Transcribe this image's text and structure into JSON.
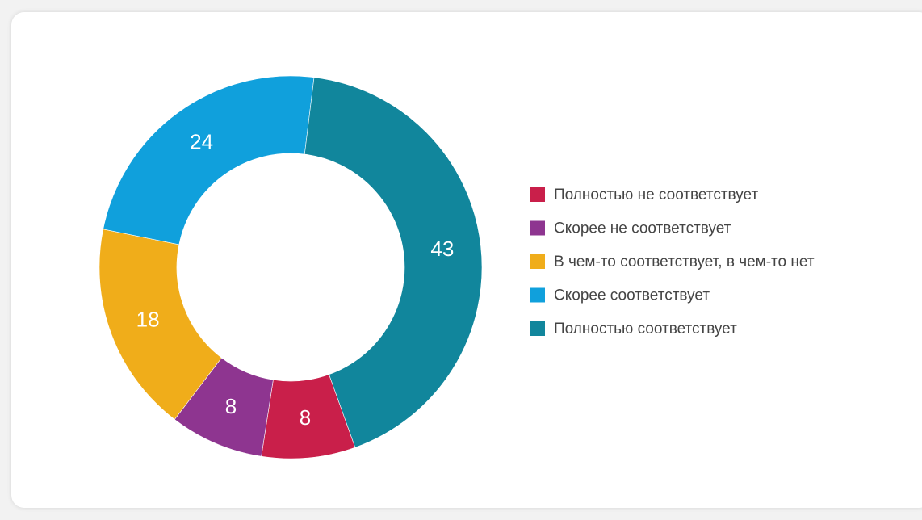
{
  "chart_data": {
    "type": "donut",
    "categories": [
      "Полностью не соответствует",
      "Скорее не соответствует",
      "В чем-то соответствует, в чем-то нет",
      "Скорее соответствует",
      "Полностью соответствует"
    ],
    "values": [
      8,
      8,
      18,
      24,
      43
    ],
    "colors": [
      "#c91f4a",
      "#8e3590",
      "#f0ad1a",
      "#10a0dc",
      "#11869c"
    ],
    "legend": "right"
  }
}
